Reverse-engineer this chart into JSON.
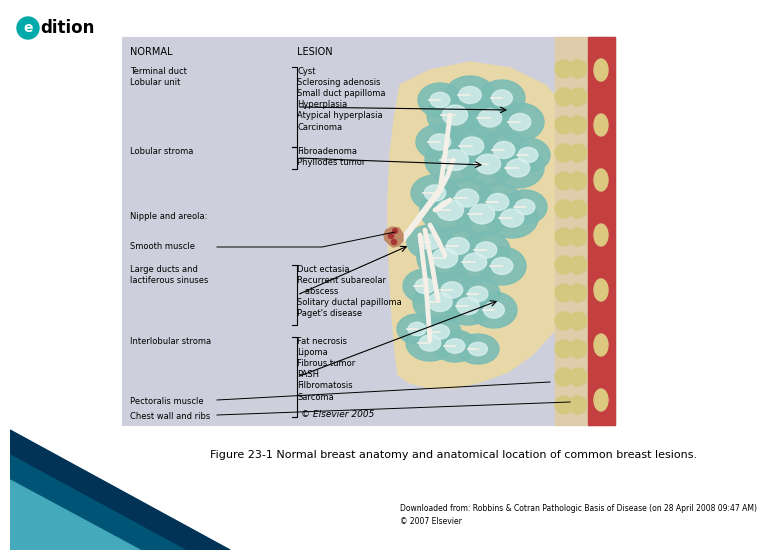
{
  "title": "Figure 23-1 Normal breast anatomy and anatomical location of common breast lesions.",
  "download_text": "Downloaded from: Robbins & Cotran Pathologic Basis of Disease (on 28 April 2008 09:47 AM)\n© 2007 Elsevier",
  "copyright": "© Elsevier 2005",
  "bg_color": "#ffffff",
  "diagram_bg": "#cdd0dc",
  "normal_col_header": "NORMAL",
  "lesion_col_header": "LESION",
  "normal_items": [
    "Terminal duct\nLobular unit",
    "Lobular stroma",
    "Nipple and areola:",
    "Smooth muscle",
    "Large ducts and\nlactiferous sinuses",
    "Interlobular stroma",
    "Pectoralis muscle",
    "Chest wall and ribs"
  ],
  "lesion_items": [
    "Cyst\nSclerosing adenosis\nSmall duct papilloma\nHyperplasia\nAtypical hyperplasia\nCarcinoma",
    "Fibroadenoma\nPhyllodes tumor",
    "",
    "",
    "Duct ectasia\nRecurrent subareolar\n   abscess\nSolitary ductal papilloma\nPaget's disease",
    "Fat necrosis\nLipoma\nFibrous tumor\nPASH\nFilbromatosis\nSarcoma",
    "",
    ""
  ],
  "logo_circle_color": "#00aaaa",
  "skin_color": "#e8d8a8",
  "muscle_color": "#c44040",
  "lobule_color": "#7abcb4",
  "lobule_inner_color": "#aad8d0",
  "duct_color": "#f0ece0",
  "fat_dot_color": "#d4c070",
  "nipple_color": "#c08060",
  "footer_colors": [
    "#003355",
    "#005577",
    "#44aabb"
  ],
  "title_fontsize": 8,
  "label_fontsize": 6,
  "header_fontsize": 7
}
